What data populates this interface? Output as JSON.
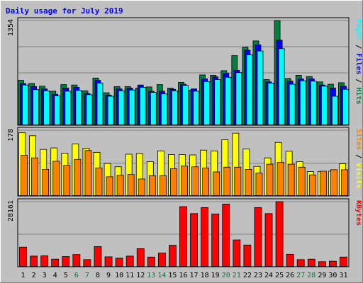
{
  "chart_data": {
    "type": "bar",
    "title": "Daily usage for July 2019",
    "categories": [
      "1",
      "2",
      "3",
      "4",
      "5",
      "6",
      "7",
      "8",
      "9",
      "10",
      "11",
      "12",
      "13",
      "14",
      "15",
      "16",
      "17",
      "18",
      "19",
      "20",
      "21",
      "22",
      "23",
      "24",
      "25",
      "26",
      "27",
      "28",
      "29",
      "30",
      "31"
    ],
    "weekend_days": [
      "6",
      "7",
      "13",
      "14",
      "20",
      "21",
      "27",
      "28"
    ],
    "panels": [
      {
        "name": "top",
        "ymax_label": "1354",
        "ymax": 1354,
        "side_label_parts": [
          "Pages",
          "Files",
          "Hits"
        ],
        "series": [
          {
            "name": "Hits",
            "color": "#008040",
            "values": [
              580,
              540,
              505,
              440,
              525,
              520,
              445,
              610,
              420,
              500,
              500,
              480,
              495,
              525,
              480,
              555,
              455,
              650,
              645,
              705,
              900,
              1010,
              1090,
              590,
              1354,
              605,
              645,
              630,
              560,
              530,
              550
            ]
          },
          {
            "name": "Files",
            "color": "#0000ff",
            "values": [
              540,
              500,
              470,
              400,
              480,
              490,
              410,
              580,
              390,
              470,
              480,
              520,
              440,
              440,
              465,
              530,
              470,
              600,
              625,
              670,
              710,
              970,
              1040,
              560,
              1100,
              570,
              600,
              600,
              520,
              480,
              505
            ]
          },
          {
            "name": "Pages",
            "color": "#00ffff",
            "values": [
              520,
              460,
              445,
              380,
              440,
              450,
              395,
              545,
              375,
              445,
              455,
              490,
              425,
              405,
              445,
              515,
              440,
              565,
              590,
              620,
              680,
              910,
              960,
              545,
              990,
              530,
              575,
              570,
              505,
              375,
              465
            ]
          }
        ]
      },
      {
        "name": "middle",
        "ymax_label": "178",
        "ymax": 178,
        "side_label_parts": [
          "Sites",
          "Visits"
        ],
        "series": [
          {
            "name": "Visits",
            "color": "#ffff00",
            "values": [
              171,
              163,
              126,
              130,
              116,
              141,
              129,
              118,
              88,
              79,
              113,
              115,
              93,
              122,
              112,
              112,
              111,
              124,
              122,
              152,
              170,
              127,
              80,
              103,
              145,
              121,
              93,
              66,
              66,
              67,
              87
            ]
          },
          {
            "name": "Sites",
            "color": "#ff8000",
            "values": [
              110,
              103,
              72,
              94,
              83,
              99,
              123,
              76,
              52,
              56,
              58,
              46,
              55,
              55,
              74,
              81,
              79,
              76,
              65,
              78,
              78,
              72,
              62,
              86,
              91,
              86,
              78,
              57,
              67,
              71,
              71
            ]
          }
        ]
      },
      {
        "name": "bottom",
        "ymax_label": "28161",
        "ymax": 28161,
        "side_label_parts": [
          "KBytes"
        ],
        "series": [
          {
            "name": "KBytes",
            "color": "#ff0000",
            "values": [
              8500,
              4600,
              4700,
              3300,
              4400,
              5300,
              3100,
              8700,
              4300,
              3700,
              4600,
              7800,
              4200,
              5900,
              9300,
              26000,
              23000,
              25600,
              22800,
              27100,
              11600,
              9400,
              25600,
              23000,
              28161,
              5400,
              3100,
              3300,
              2200,
              2400,
              4200
            ]
          }
        ]
      }
    ],
    "palette": {
      "background": "#c0c0c0",
      "plot_bg": "#c0c0c0",
      "gridline": "#808080",
      "title_color": "#0000ff",
      "x_tick": "#000000",
      "x_tick_weekend": "#008040"
    }
  }
}
